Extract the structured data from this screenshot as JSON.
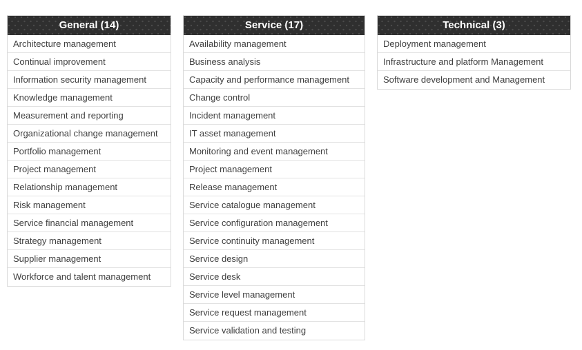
{
  "colors": {
    "header_background": "#2f2f2f",
    "header_dot": "#4b4b4b",
    "header_text": "#ffffff",
    "row_text": "#3f3f3f",
    "border": "#d9d9d9"
  },
  "tables": [
    {
      "title": "General (14)",
      "items": [
        "Architecture management",
        "Continual improvement",
        "Information security management",
        "Knowledge management",
        "Measurement and reporting",
        "Organizational change management",
        "Portfolio management",
        "Project management",
        "Relationship management",
        "Risk management",
        "Service financial management",
        "Strategy management",
        "Supplier management",
        "Workforce and talent management"
      ]
    },
    {
      "title": "Service (17)",
      "items": [
        "Availability management",
        "Business analysis",
        "Capacity and performance management",
        "Change control",
        "Incident management",
        "IT asset management",
        "Monitoring and event management",
        "Project management",
        "Release management",
        "Service catalogue management",
        "Service configuration management",
        "Service continuity management",
        "Service design",
        "Service desk",
        "Service level management",
        "Service request management",
        "Service validation and testing"
      ]
    },
    {
      "title": "Technical (3)",
      "items": [
        "Deployment management",
        "Infrastructure and platform Management",
        "Software development and Management"
      ]
    }
  ]
}
